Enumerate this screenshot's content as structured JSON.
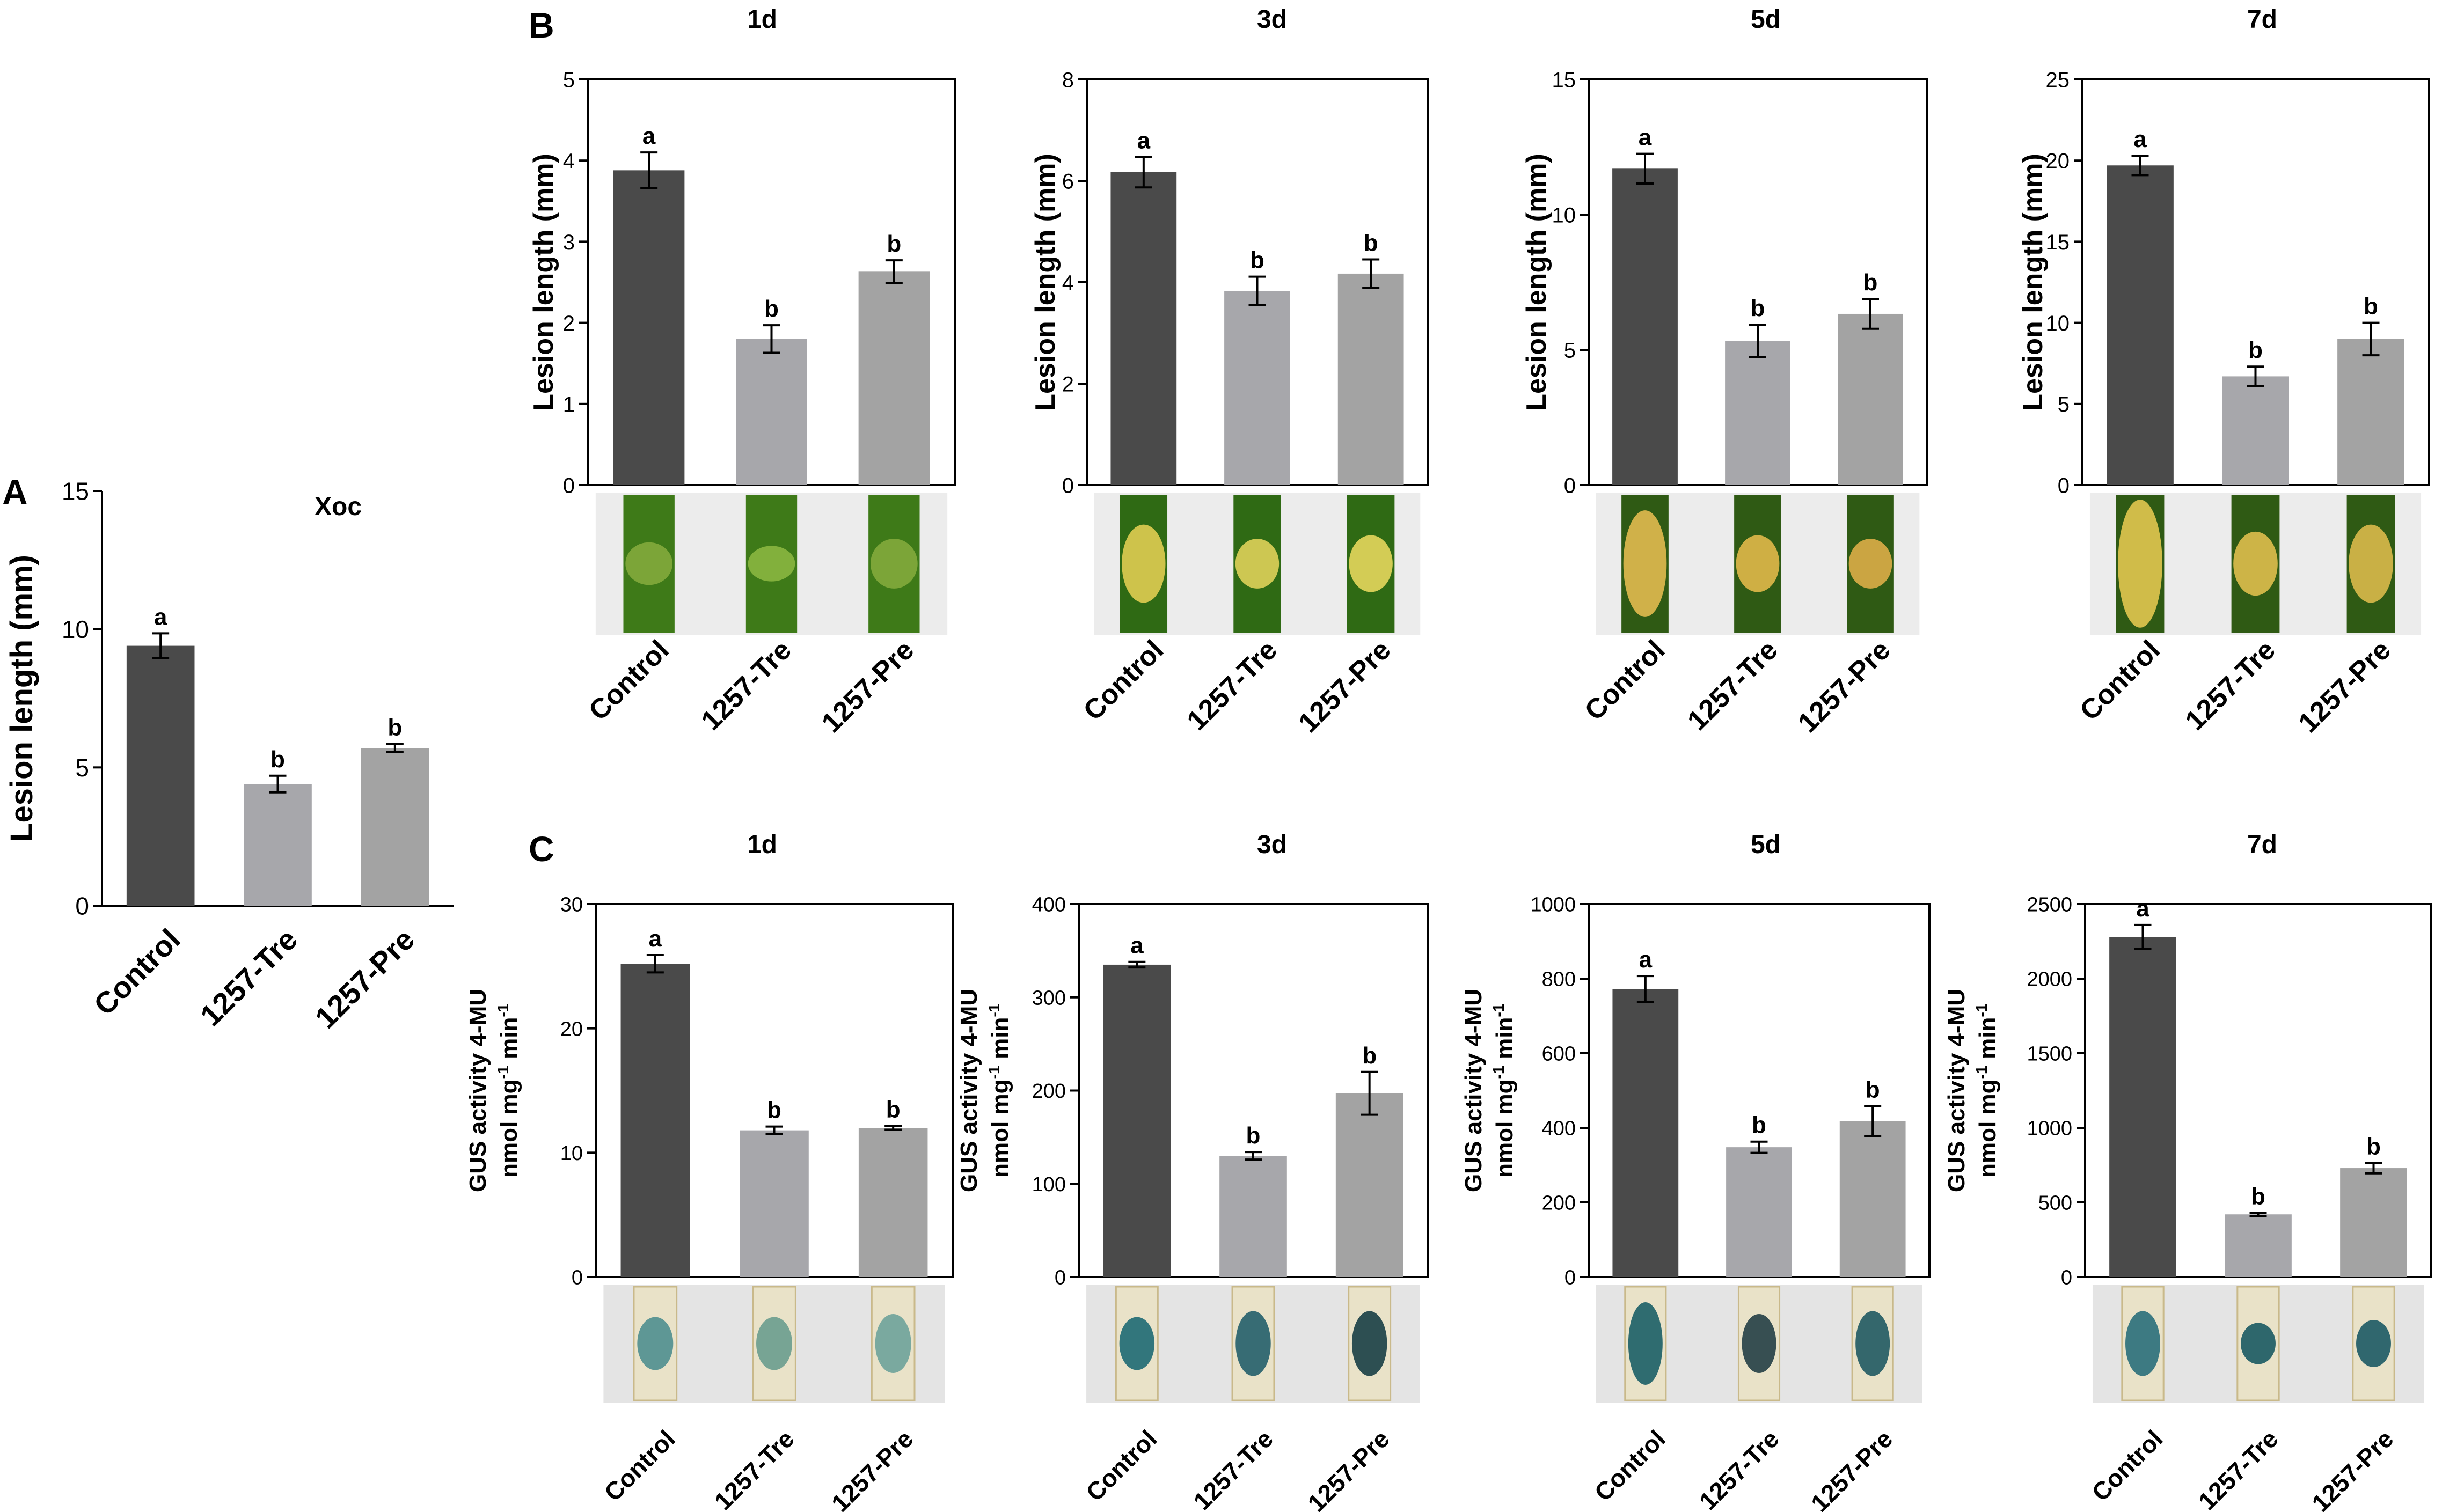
{
  "panel_labels": {
    "A": "A",
    "B": "B",
    "C": "C"
  },
  "colors": {
    "control": "#4a4a4a",
    "tre": "#a7a7ab",
    "pre": "#a3a3a3",
    "axis": "#000000",
    "leaf_green": "#3f7d1c",
    "leaf_yellow": "#d8c24a",
    "gus_blue": "#1e6f78",
    "gus_bg": "#e9e7d9",
    "photo_bg": "#ececec"
  },
  "chart_data": [
    {
      "id": "A",
      "type": "bar",
      "title": "Xoc",
      "ylabel": "Lesion length (mm)",
      "ylim": [
        0,
        15
      ],
      "yticks": [
        0,
        5,
        10,
        15
      ],
      "categories": [
        "Control",
        "1257-Tre",
        "1257-Pre"
      ],
      "values": [
        9.4,
        4.4,
        5.7
      ],
      "errors": [
        0.45,
        0.3,
        0.15
      ],
      "letters": [
        "a",
        "b",
        "b"
      ]
    },
    {
      "id": "B1",
      "type": "bar",
      "title": "1d",
      "ylabel": "Lesion length (mm)",
      "ylim": [
        0,
        5
      ],
      "yticks": [
        0,
        1,
        2,
        3,
        4,
        5
      ],
      "categories": [
        "Control",
        "1257-Tre",
        "1257-Pre"
      ],
      "values": [
        3.88,
        1.8,
        2.63
      ],
      "errors": [
        0.22,
        0.17,
        0.14
      ],
      "letters": [
        "a",
        "b",
        "b"
      ]
    },
    {
      "id": "B3",
      "type": "bar",
      "title": "3d",
      "ylabel": "Lesion length (mm)",
      "ylim": [
        0,
        8
      ],
      "yticks": [
        0,
        2,
        4,
        6,
        8
      ],
      "categories": [
        "Control",
        "1257-Tre",
        "1257-Pre"
      ],
      "values": [
        6.17,
        3.83,
        4.17
      ],
      "errors": [
        0.3,
        0.28,
        0.28
      ],
      "letters": [
        "a",
        "b",
        "b"
      ]
    },
    {
      "id": "B5",
      "type": "bar",
      "title": "5d",
      "ylabel": "Lesion length (mm)",
      "ylim": [
        0,
        15
      ],
      "yticks": [
        0,
        5,
        10,
        15
      ],
      "categories": [
        "Control",
        "1257-Tre",
        "1257-Pre"
      ],
      "values": [
        11.7,
        5.33,
        6.33
      ],
      "errors": [
        0.55,
        0.6,
        0.55
      ],
      "letters": [
        "a",
        "b",
        "b"
      ]
    },
    {
      "id": "B7",
      "type": "bar",
      "title": "7d",
      "ylabel": "Lesion length (mm)",
      "ylim": [
        0,
        25
      ],
      "yticks": [
        0,
        5,
        10,
        15,
        20,
        25
      ],
      "categories": [
        "Control",
        "1257-Tre",
        "1257-Pre"
      ],
      "values": [
        19.7,
        6.7,
        9.0
      ],
      "errors": [
        0.6,
        0.6,
        1.0
      ],
      "letters": [
        "a",
        "b",
        "b"
      ]
    },
    {
      "id": "C1",
      "type": "bar",
      "title": "1d",
      "ylabel": [
        "GUS activity 4-MU",
        "nmol mg",
        "-1",
        " min",
        "-1"
      ],
      "ylim": [
        0,
        30
      ],
      "yticks": [
        0,
        10,
        20,
        30
      ],
      "categories": [
        "Control",
        "1257-Tre",
        "1257-Pre"
      ],
      "values": [
        25.2,
        11.8,
        12.0
      ],
      "errors": [
        0.7,
        0.3,
        0.15
      ],
      "letters": [
        "a",
        "b",
        "b"
      ]
    },
    {
      "id": "C3",
      "type": "bar",
      "title": "3d",
      "ylabel": [
        "GUS activity 4-MU",
        "nmol mg",
        "-1",
        " min",
        "-1"
      ],
      "ylim": [
        0,
        400
      ],
      "yticks": [
        0,
        100,
        200,
        300,
        400
      ],
      "categories": [
        "Control",
        "1257-Tre",
        "1257-Pre"
      ],
      "values": [
        335,
        130,
        197
      ],
      "errors": [
        3,
        4,
        23
      ],
      "letters": [
        "a",
        "b",
        "b"
      ]
    },
    {
      "id": "C5",
      "type": "bar",
      "title": "5d",
      "ylabel": [
        "GUS activity 4-MU",
        "nmol mg",
        "-1",
        " min",
        "-1"
      ],
      "ylim": [
        0,
        1000
      ],
      "yticks": [
        0,
        200,
        400,
        600,
        800,
        1000
      ],
      "categories": [
        "Control",
        "1257-Tre",
        "1257-Pre"
      ],
      "values": [
        772,
        348,
        418
      ],
      "errors": [
        35,
        15,
        40
      ],
      "letters": [
        "a",
        "b",
        "b"
      ]
    },
    {
      "id": "C7",
      "type": "bar",
      "title": "7d",
      "ylabel": [
        "GUS activity 4-MU",
        "nmol mg",
        "-1",
        " min",
        "-1"
      ],
      "ylim": [
        0,
        2500
      ],
      "yticks": [
        0,
        500,
        1000,
        1500,
        2000,
        2500
      ],
      "categories": [
        "Control",
        "1257-Tre",
        "1257-Pre"
      ],
      "values": [
        2280,
        420,
        730
      ],
      "errors": [
        80,
        10,
        35
      ],
      "letters": [
        "a",
        "b",
        "b"
      ]
    }
  ]
}
